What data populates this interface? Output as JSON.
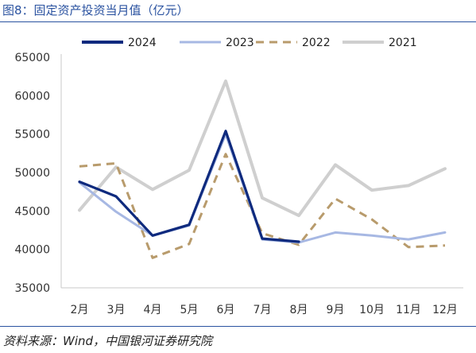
{
  "header": {
    "title": "图8：固定资产投资当月值（亿元）"
  },
  "footer": {
    "source": "资料来源：Wind，中国银河证券研究院"
  },
  "chart_data": {
    "type": "line",
    "title": "图8：固定资产投资当月值（亿元）",
    "xlabel": "",
    "ylabel": "",
    "categories": [
      "2月",
      "3月",
      "4月",
      "5月",
      "6月",
      "7月",
      "8月",
      "9月",
      "10月",
      "11月",
      "12月"
    ],
    "ylim": [
      35000,
      65000
    ],
    "yticks": [
      35000,
      40000,
      45000,
      50000,
      55000,
      60000,
      65000
    ],
    "grid": false,
    "legend_position": "top",
    "series": [
      {
        "name": "2024",
        "color": "#0e2a7e",
        "style": "solid",
        "values": [
          48800,
          46900,
          41800,
          43200,
          55400,
          41400,
          41000,
          null,
          null,
          null,
          null
        ]
      },
      {
        "name": "2023",
        "color": "#a7b8e3",
        "style": "solid",
        "values": [
          48700,
          44900,
          41800,
          43100,
          55000,
          41300,
          40900,
          42200,
          41800,
          41300,
          42200
        ]
      },
      {
        "name": "2022",
        "color": "#b89b6c",
        "style": "dashed",
        "values": [
          50800,
          51200,
          38900,
          40700,
          52400,
          42100,
          40600,
          46600,
          43900,
          40300,
          40500
        ]
      },
      {
        "name": "2021",
        "color": "#cfcfcf",
        "style": "solid",
        "values": [
          45100,
          50700,
          47800,
          50300,
          61900,
          46700,
          44400,
          51000,
          47700,
          48300,
          50500
        ]
      }
    ]
  }
}
